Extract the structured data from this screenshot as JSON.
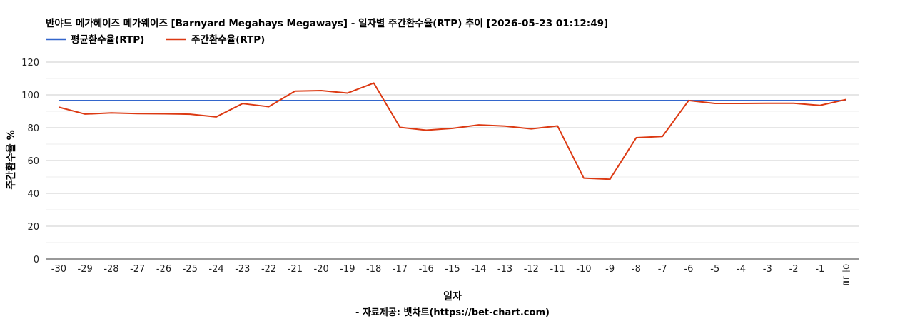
{
  "chart_data": {
    "type": "line",
    "title": "반야드 메가헤이즈 메가웨이즈 [Barnyard Megahays Megaways] - 일자별 주간환수율(RTP) 추이 [2026-05-23 01:12:49]",
    "xlabel": "일자",
    "ylabel": "주간환수율 %",
    "footer": "- 자료제공: 벳차트(https://bet-chart.com)",
    "ylim": [
      0,
      120
    ],
    "yticks": [
      0,
      20,
      40,
      60,
      80,
      100,
      120
    ],
    "grid": true,
    "legend_position": "top-left",
    "categories": [
      "-30",
      "-29",
      "-28",
      "-27",
      "-26",
      "-25",
      "-24",
      "-23",
      "-22",
      "-21",
      "-20",
      "-19",
      "-18",
      "-17",
      "-16",
      "-15",
      "-14",
      "-13",
      "-12",
      "-11",
      "-10",
      "-9",
      "-8",
      "-7",
      "-6",
      "-5",
      "-4",
      "-3",
      "-2",
      "-1",
      "오늘"
    ],
    "series": [
      {
        "name": "평균환수율(RTP)",
        "color": "#3366cc",
        "values": [
          96.5,
          96.5,
          96.5,
          96.5,
          96.5,
          96.5,
          96.5,
          96.5,
          96.5,
          96.5,
          96.5,
          96.5,
          96.5,
          96.5,
          96.5,
          96.5,
          96.5,
          96.5,
          96.5,
          96.5,
          96.5,
          96.5,
          96.5,
          96.5,
          96.5,
          96.5,
          96.5,
          96.5,
          96.5,
          96.5,
          96.5
        ]
      },
      {
        "name": "주간환수율(RTP)",
        "color": "#dc3912",
        "values": [
          92.5,
          88.3,
          89.0,
          88.6,
          88.5,
          88.2,
          86.6,
          94.7,
          92.8,
          102.3,
          102.6,
          101.1,
          107.2,
          80.2,
          78.5,
          79.6,
          81.7,
          81.0,
          79.3,
          81.1,
          49.3,
          48.6,
          73.9,
          74.7,
          96.6,
          94.8,
          94.8,
          94.9,
          94.9,
          93.6,
          97.2
        ]
      }
    ]
  }
}
